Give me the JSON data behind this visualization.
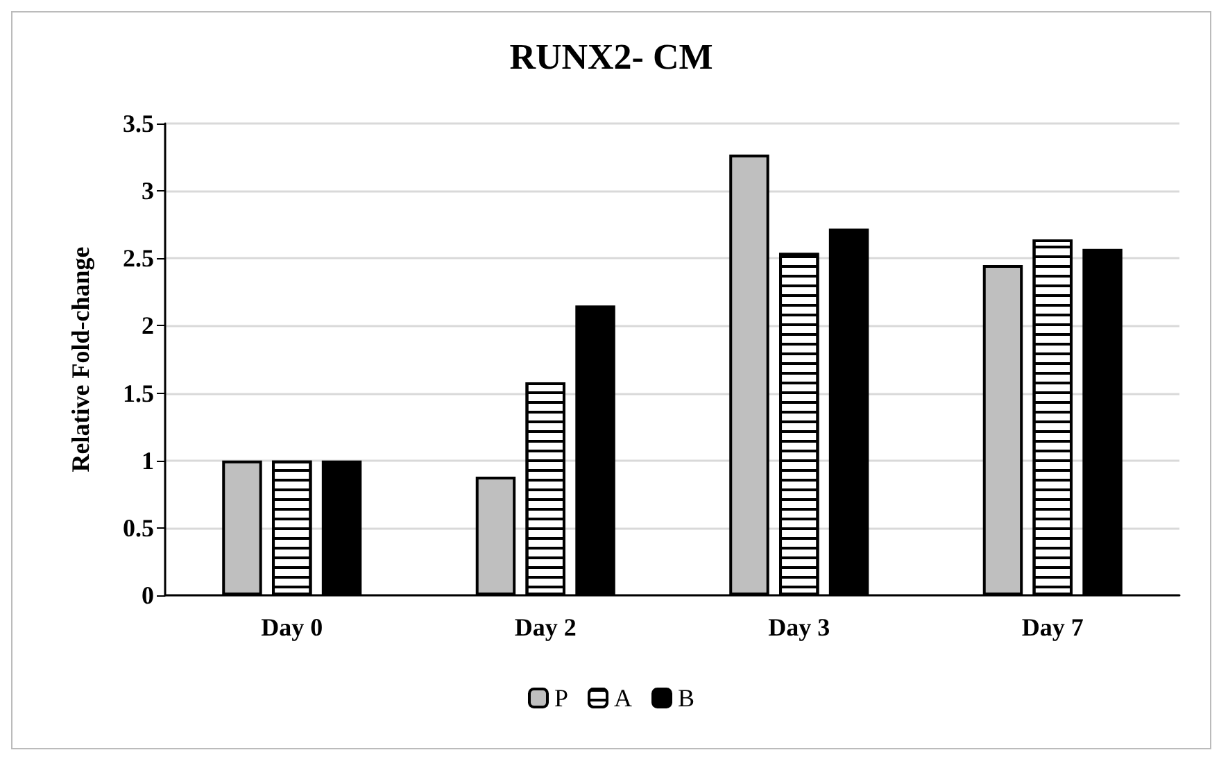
{
  "chart_data": {
    "type": "bar",
    "title": "RUNX2- CM",
    "ylabel": "Relative Fold-change",
    "categories": [
      "Day 0",
      "Day 2",
      "Day 3",
      "Day 7"
    ],
    "series": [
      {
        "name": "P",
        "color": "#bfbfbf",
        "values": [
          1,
          0.88,
          3.27,
          2.45
        ]
      },
      {
        "name": "A",
        "color": "#ffffff",
        "values": [
          1,
          1.58,
          2.54,
          2.64
        ]
      },
      {
        "name": "B",
        "color": "#000000",
        "values": [
          1,
          2.15,
          2.72,
          2.57
        ]
      }
    ],
    "ylim": [
      0,
      3.5
    ],
    "yticks": [
      0,
      0.5,
      1,
      1.5,
      2,
      2.5,
      3,
      3.5
    ],
    "grid": "y",
    "legend": "bottom"
  }
}
